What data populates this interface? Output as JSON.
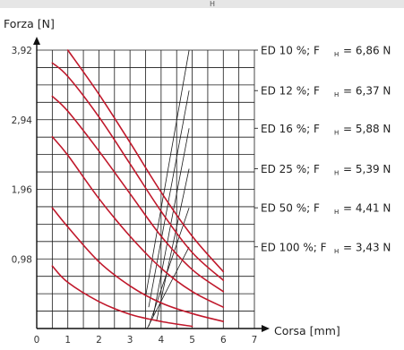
{
  "header": {
    "fragment": "H"
  },
  "chart_data": {
    "type": "line",
    "title": "",
    "ylabel": "Forza  [N]",
    "xlabel": "Corsa  [mm]",
    "xlim": [
      0,
      7
    ],
    "ylim": [
      0,
      3.92
    ],
    "x_ticks": [
      "0",
      "1",
      "2",
      "3",
      "4",
      "5",
      "6",
      "7"
    ],
    "y_ticks": [
      "0,98",
      "1,96",
      "2,94",
      "3,92"
    ],
    "y_tick_values": [
      0.98,
      1.96,
      2.94,
      3.92
    ],
    "grid": true,
    "series": [
      {
        "name": "ED  10 %;  F",
        "sub": "H",
        "value_label": "=  6,86 N",
        "points": [
          [
            1.0,
            3.92
          ],
          [
            2.0,
            3.3
          ],
          [
            3.0,
            2.62
          ],
          [
            4.0,
            1.92
          ],
          [
            5.0,
            1.3
          ],
          [
            6.0,
            0.8
          ]
        ]
      },
      {
        "name": "ED  12 %;  F",
        "sub": "H",
        "value_label": "=  6,37 N",
        "points": [
          [
            0.5,
            3.74
          ],
          [
            1.0,
            3.55
          ],
          [
            2.0,
            2.98
          ],
          [
            3.0,
            2.32
          ],
          [
            4.0,
            1.65
          ],
          [
            5.0,
            1.07
          ],
          [
            6.0,
            0.68
          ]
        ]
      },
      {
        "name": "ED  16 %;  F",
        "sub": "H",
        "value_label": "=  5,88 N",
        "points": [
          [
            0.5,
            3.27
          ],
          [
            1.0,
            3.06
          ],
          [
            2.0,
            2.5
          ],
          [
            3.0,
            1.9
          ],
          [
            4.0,
            1.3
          ],
          [
            5.0,
            0.83
          ],
          [
            6.0,
            0.52
          ]
        ]
      },
      {
        "name": "ED  25 %;  F",
        "sub": "H",
        "value_label": "=  5,39 N",
        "points": [
          [
            0.5,
            2.7
          ],
          [
            1.0,
            2.44
          ],
          [
            2.0,
            1.83
          ],
          [
            3.0,
            1.3
          ],
          [
            4.0,
            0.85
          ],
          [
            5.0,
            0.52
          ],
          [
            6.0,
            0.3
          ]
        ]
      },
      {
        "name": "ED  50 %;  F",
        "sub": "H",
        "value_label": "=  4,41 N",
        "points": [
          [
            0.5,
            1.7
          ],
          [
            1.0,
            1.43
          ],
          [
            2.0,
            0.94
          ],
          [
            3.0,
            0.6
          ],
          [
            4.0,
            0.36
          ],
          [
            5.0,
            0.21
          ],
          [
            6.0,
            0.1
          ]
        ]
      },
      {
        "name": "ED 100 %;  F",
        "sub": "H",
        "value_label": "=  3,43 N",
        "points": [
          [
            0.5,
            0.88
          ],
          [
            1.0,
            0.65
          ],
          [
            2.0,
            0.38
          ],
          [
            3.0,
            0.2
          ],
          [
            4.0,
            0.1
          ],
          [
            5.0,
            0.03
          ]
        ]
      }
    ],
    "leaders_from": [
      [
        4.9,
        3.92
      ],
      [
        4.9,
        3.35
      ],
      [
        4.9,
        2.82
      ],
      [
        4.9,
        2.25
      ],
      [
        4.9,
        1.7
      ],
      [
        4.9,
        1.15
      ]
    ],
    "leaders_to": [
      [
        3.5,
        0.45
      ],
      [
        3.6,
        0.3
      ],
      [
        3.75,
        0.18
      ],
      [
        3.85,
        0.1
      ],
      [
        3.6,
        0.03
      ],
      [
        3.55,
        0.0
      ]
    ],
    "colors": {
      "curve": "#c0182b",
      "grid": "#1a1a1a",
      "leader": "#1a1a1a"
    },
    "legend_position": "right"
  }
}
